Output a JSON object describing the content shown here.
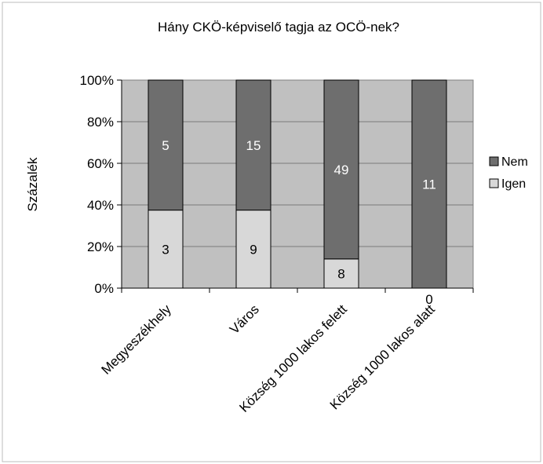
{
  "chart_data": {
    "type": "bar",
    "stacked": true,
    "percent": true,
    "title": "Hány CKÖ-képviselő tagja az OCÖ-nek?",
    "xlabel": "",
    "ylabel": "Százalék",
    "ylim": [
      0,
      100
    ],
    "yticks": [
      "0%",
      "20%",
      "40%",
      "60%",
      "80%",
      "100%"
    ],
    "categories": [
      "Megyeszékhely",
      "Város",
      "Község 1000 lakos felett",
      "Község 1000 lakos alatt"
    ],
    "series": [
      {
        "name": "Igen",
        "values": [
          3,
          9,
          8,
          0
        ],
        "color": "#d8d8d8"
      },
      {
        "name": "Nem",
        "values": [
          5,
          15,
          49,
          11
        ],
        "color": "#6e6e6e"
      }
    ],
    "legend_position": "right",
    "plot_background": "#c0c0c0",
    "grid": true
  }
}
